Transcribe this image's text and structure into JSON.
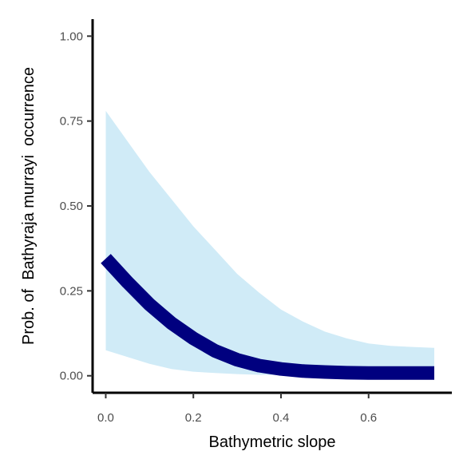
{
  "chart_data": {
    "type": "line",
    "title": "",
    "xlabel": "Bathymetric slope",
    "ylabel": "Prob. of  Bathyraja murrayi  occurrence",
    "xlim": [
      -0.03,
      0.79
    ],
    "ylim": [
      -0.05,
      1.05
    ],
    "x_ticks": [
      0.0,
      0.2,
      0.4,
      0.6
    ],
    "x_tick_labels": [
      "0.0",
      "0.2",
      "0.4",
      "0.6"
    ],
    "y_ticks": [
      0.0,
      0.25,
      0.5,
      0.75,
      1.0
    ],
    "y_tick_labels": [
      "0.00",
      "0.25",
      "0.50",
      "0.75",
      "1.00"
    ],
    "grid": false,
    "legend": "none",
    "series": [
      {
        "type": "line",
        "x": [
          0.0,
          0.05,
          0.1,
          0.15,
          0.2,
          0.25,
          0.3,
          0.35,
          0.4,
          0.45,
          0.5,
          0.55,
          0.6,
          0.65,
          0.7,
          0.75
        ],
        "y": [
          0.345,
          0.275,
          0.21,
          0.155,
          0.11,
          0.073,
          0.047,
          0.03,
          0.02,
          0.014,
          0.011,
          0.009,
          0.008,
          0.008,
          0.008,
          0.008
        ],
        "color": "#00007f"
      },
      {
        "type": "band",
        "x": [
          0.0,
          0.05,
          0.1,
          0.15,
          0.2,
          0.25,
          0.3,
          0.35,
          0.4,
          0.45,
          0.5,
          0.55,
          0.6,
          0.65,
          0.7,
          0.75
        ],
        "lower": [
          0.075,
          0.055,
          0.035,
          0.02,
          0.012,
          0.008,
          0.005,
          0.003,
          0.002,
          0.0015,
          0.001,
          0.001,
          0.001,
          0.001,
          0.001,
          0.001
        ],
        "upper": [
          0.78,
          0.69,
          0.6,
          0.52,
          0.44,
          0.37,
          0.3,
          0.245,
          0.195,
          0.16,
          0.13,
          0.11,
          0.095,
          0.088,
          0.085,
          0.082
        ],
        "color": "#d0ebf7"
      }
    ]
  }
}
